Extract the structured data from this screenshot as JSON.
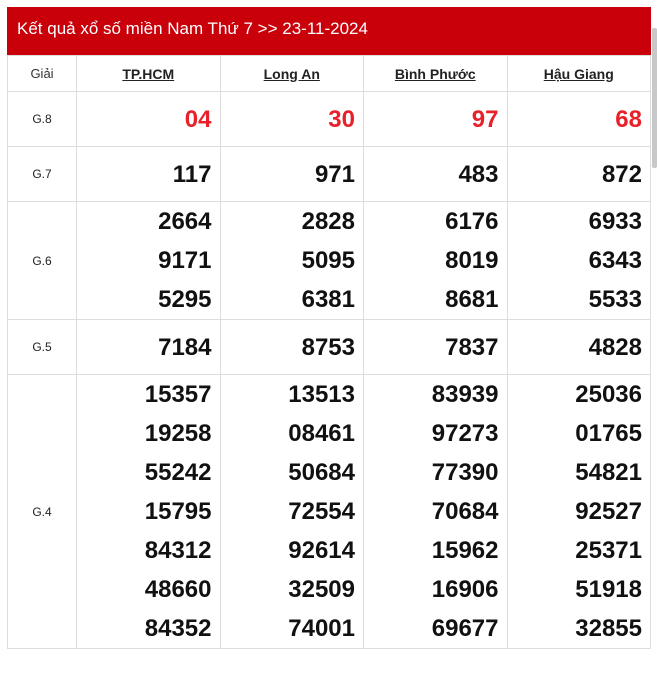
{
  "title": "Kết quả xổ số miền Nam Thứ 7 >> 23-11-2024",
  "header": {
    "prize": "Giải",
    "provinces": [
      "TP.HCM",
      "Long An",
      "Bình Phước",
      "Hậu Giang"
    ]
  },
  "rows": [
    {
      "label": "G.8",
      "values": [
        [
          "04"
        ],
        [
          "30"
        ],
        [
          "97"
        ],
        [
          "68"
        ]
      ]
    },
    {
      "label": "G.7",
      "values": [
        [
          "117"
        ],
        [
          "971"
        ],
        [
          "483"
        ],
        [
          "872"
        ]
      ]
    },
    {
      "label": "G.6",
      "values": [
        [
          "2664",
          "9171",
          "5295"
        ],
        [
          "2828",
          "5095",
          "6381"
        ],
        [
          "6176",
          "8019",
          "8681"
        ],
        [
          "6933",
          "6343",
          "5533"
        ]
      ]
    },
    {
      "label": "G.5",
      "values": [
        [
          "7184"
        ],
        [
          "8753"
        ],
        [
          "7837"
        ],
        [
          "4828"
        ]
      ]
    },
    {
      "label": "G.4",
      "values": [
        [
          "15357",
          "19258",
          "55242",
          "15795",
          "84312",
          "48660",
          "84352"
        ],
        [
          "13513",
          "08461",
          "50684",
          "72554",
          "92614",
          "32509",
          "74001"
        ],
        [
          "83939",
          "97273",
          "77390",
          "70684",
          "15962",
          "16906",
          "69677"
        ],
        [
          "25036",
          "01765",
          "54821",
          "92527",
          "25371",
          "51918",
          "32855"
        ]
      ]
    }
  ],
  "colors": {
    "header_bg": "#c9000a",
    "g8_text": "#e8202a"
  }
}
